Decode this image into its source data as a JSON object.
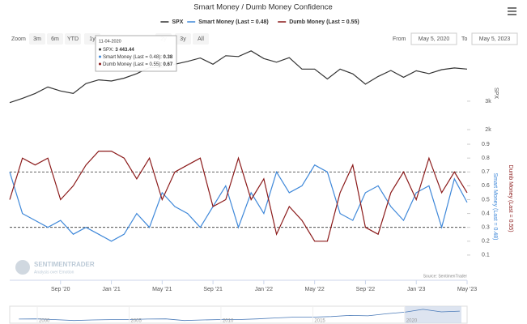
{
  "chart_data": {
    "type": "line",
    "title": "Smart Money / Dumb Money Confidence",
    "x": [
      "2020-05",
      "2020-06",
      "2020-07",
      "2020-08",
      "2020-09",
      "2020-10",
      "2020-11",
      "2020-12",
      "2021-01",
      "2021-02",
      "2021-03",
      "2021-04",
      "2021-05",
      "2021-06",
      "2021-07",
      "2021-08",
      "2021-09",
      "2021-10",
      "2021-11",
      "2021-12",
      "2022-01",
      "2022-02",
      "2022-03",
      "2022-04",
      "2022-05",
      "2022-06",
      "2022-07",
      "2022-08",
      "2022-09",
      "2022-10",
      "2022-11",
      "2022-12",
      "2023-01",
      "2023-02",
      "2023-03",
      "2023-04",
      "2023-05"
    ],
    "xlim": [
      "2020-05",
      "2023-05"
    ],
    "xticks": [
      {
        "value": "2020-09",
        "label": "Sep '20"
      },
      {
        "value": "2021-01",
        "label": "Jan '21"
      },
      {
        "value": "2021-05",
        "label": "May '21"
      },
      {
        "value": "2021-09",
        "label": "Sep '21"
      },
      {
        "value": "2022-01",
        "label": "Jan '22"
      },
      {
        "value": "2022-05",
        "label": "May '22"
      },
      {
        "value": "2022-09",
        "label": "Sep '22"
      },
      {
        "value": "2023-01",
        "label": "Jan '23"
      },
      {
        "value": "2023-05",
        "label": "May '23"
      }
    ],
    "ylim": [
      2000,
      4850
    ],
    "yticks": [
      {
        "value": 3000,
        "label": "3k"
      },
      {
        "value": 2000,
        "label": "2k"
      }
    ],
    "y2lim": [
      0,
      0.95
    ],
    "y2ticks": [
      0.1,
      0.2,
      0.3,
      0.4,
      0.5,
      0.6,
      0.7,
      0.8,
      0.9
    ],
    "reference_lines": [
      0.7,
      0.3
    ],
    "series": [
      {
        "name": "SPX",
        "color": "#333333",
        "axis": "y",
        "values": [
          2950,
          3100,
          3270,
          3500,
          3360,
          3270,
          3620,
          3750,
          3710,
          3810,
          3970,
          4180,
          4200,
          4300,
          4400,
          4520,
          4300,
          4600,
          4570,
          4770,
          4500,
          4370,
          4530,
          4130,
          4130,
          3780,
          4130,
          3960,
          3600,
          3870,
          4080,
          3840,
          4070,
          3970,
          4110,
          4170,
          4130
        ]
      },
      {
        "name": "Smart Money (Last = 0.48)",
        "color": "#3f88d9",
        "axis": "y2",
        "values": [
          0.7,
          0.4,
          0.35,
          0.3,
          0.35,
          0.25,
          0.3,
          0.25,
          0.2,
          0.25,
          0.4,
          0.3,
          0.55,
          0.45,
          0.4,
          0.3,
          0.45,
          0.6,
          0.3,
          0.55,
          0.4,
          0.7,
          0.55,
          0.6,
          0.75,
          0.7,
          0.4,
          0.35,
          0.55,
          0.6,
          0.45,
          0.35,
          0.55,
          0.6,
          0.3,
          0.65,
          0.48
        ]
      },
      {
        "name": "Dumb Money (Last = 0.55)",
        "color": "#8b1a1a",
        "axis": "y2",
        "values": [
          0.5,
          0.8,
          0.75,
          0.8,
          0.5,
          0.6,
          0.75,
          0.85,
          0.85,
          0.8,
          0.65,
          0.8,
          0.5,
          0.7,
          0.75,
          0.8,
          0.45,
          0.5,
          0.8,
          0.5,
          0.65,
          0.25,
          0.45,
          0.35,
          0.2,
          0.2,
          0.55,
          0.75,
          0.3,
          0.25,
          0.55,
          0.7,
          0.5,
          0.8,
          0.55,
          0.7,
          0.55
        ]
      }
    ],
    "navigator": {
      "x": [
        1999,
        2000,
        2001,
        2002,
        2003,
        2004,
        2005,
        2006,
        2007,
        2008,
        2009,
        2010,
        2011,
        2012,
        2013,
        2014,
        2015,
        2016,
        2017,
        2018,
        2019,
        2020,
        2021,
        2022,
        2023
      ],
      "values": [
        1400,
        1450,
        1200,
        900,
        1100,
        1200,
        1250,
        1400,
        1450,
        900,
        1100,
        1250,
        1250,
        1450,
        1800,
        2050,
        2050,
        2250,
        2650,
        2500,
        3200,
        3750,
        4700,
        3850,
        4100
      ],
      "xlim": [
        1998.5,
        2023.4
      ],
      "ylim": [
        0,
        5500
      ],
      "xticks": [
        2000,
        2005,
        2010,
        2015,
        2020
      ]
    }
  },
  "ui": {
    "zoom_label": "Zoom",
    "zoom_buttons": [
      "3m",
      "6m",
      "YTD",
      "1y",
      "2y",
      "3y",
      "All"
    ],
    "from_label": "From",
    "from_value": "May 5, 2020",
    "to_label": "To",
    "to_value": "May 5, 2023",
    "tooltip": {
      "date": "11-04-2020",
      "rows": [
        {
          "label": "SPX: ",
          "value": "3 443.44"
        },
        {
          "label": "Smart Money (Last = 0.48): ",
          "value": "0.38"
        },
        {
          "label": "Dumb Money (Last = 0.55): ",
          "value": "0.67"
        }
      ]
    },
    "credit": "Source: SentimenTrader",
    "logo": {
      "name": "SENTIMENTRADER",
      "tagline": "Analysis over Emotion"
    }
  }
}
